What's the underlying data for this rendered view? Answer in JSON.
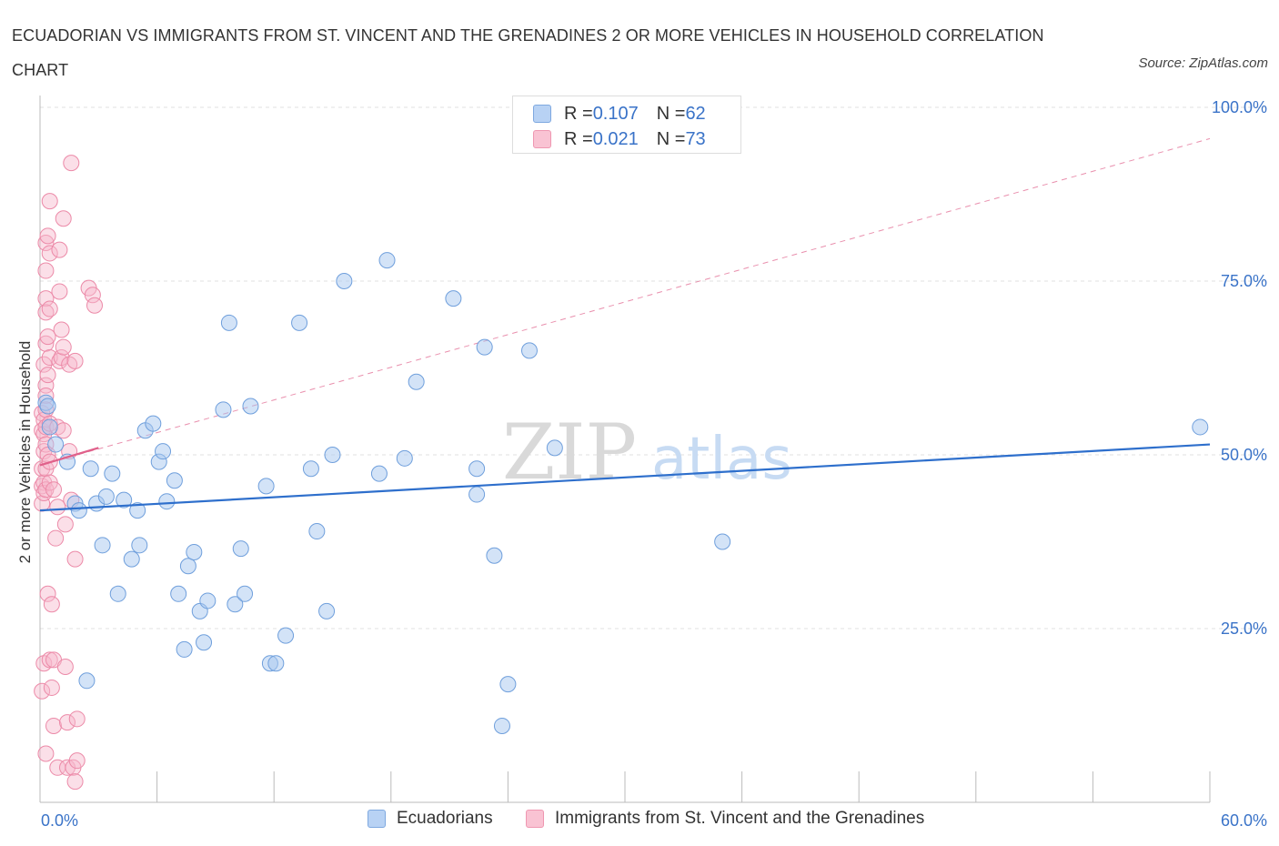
{
  "title": "ECUADORIAN VS IMMIGRANTS FROM ST. VINCENT AND THE GRENADINES 2 OR MORE VEHICLES IN HOUSEHOLD CORRELATION CHART",
  "source": "Source: ZipAtlas.com",
  "watermark": {
    "zip": "ZIP",
    "atlas": "atlas"
  },
  "legend": {
    "series1": {
      "r_label": "R = ",
      "r_value": "0.107",
      "n_label": "N = ",
      "n_value": "62"
    },
    "series2": {
      "r_label": "R = ",
      "r_value": "0.021",
      "n_label": "N = ",
      "n_value": "73"
    }
  },
  "bottom_legend": {
    "series1": "Ecuadorians",
    "series2": "Immigrants from St. Vincent and the Grenadines"
  },
  "chart_data": {
    "type": "scatter",
    "title": "ECUADORIAN VS IMMIGRANTS FROM ST. VINCENT AND THE GRENADINES 2 OR MORE VEHICLES IN HOUSEHOLD CORRELATION CHART",
    "xlabel": "",
    "ylabel": "2 or more Vehicles in Household",
    "xlim": [
      0,
      60
    ],
    "ylim": [
      0,
      100
    ],
    "x_tick_labels": [
      "0.0%",
      "60.0%"
    ],
    "y_ticks": [
      25,
      50,
      75,
      100
    ],
    "y_tick_labels": [
      "25.0%",
      "50.0%",
      "75.0%",
      "100.0%"
    ],
    "colors": {
      "series1_fill": "#a8c8f0",
      "series1_stroke": "#6f9fdc",
      "series1_line": "#2e6fcc",
      "series2_fill": "#f7b8cb",
      "series2_stroke": "#ec8aa8",
      "series2_line": "#e0608a",
      "grid": "#e0e0e0",
      "axis_text": "#3a73c8"
    },
    "series": [
      {
        "name": "Ecuadorians",
        "points": [
          [
            0.3,
            57.5
          ],
          [
            0.4,
            57.0
          ],
          [
            0.5,
            54.0
          ],
          [
            0.8,
            51.5
          ],
          [
            1.4,
            49.0
          ],
          [
            1.8,
            43.0
          ],
          [
            2.0,
            42.0
          ],
          [
            2.4,
            17.5
          ],
          [
            2.6,
            48.0
          ],
          [
            2.9,
            43.0
          ],
          [
            3.2,
            37.0
          ],
          [
            3.4,
            44.0
          ],
          [
            3.7,
            47.3
          ],
          [
            4.0,
            30.0
          ],
          [
            4.3,
            43.5
          ],
          [
            4.7,
            35.0
          ],
          [
            5.0,
            42.0
          ],
          [
            5.1,
            37.0
          ],
          [
            5.4,
            53.5
          ],
          [
            5.8,
            54.5
          ],
          [
            6.1,
            49.0
          ],
          [
            6.3,
            50.5
          ],
          [
            6.5,
            43.3
          ],
          [
            6.9,
            46.3
          ],
          [
            7.1,
            30.0
          ],
          [
            7.4,
            22.0
          ],
          [
            7.6,
            34.0
          ],
          [
            7.9,
            36.0
          ],
          [
            8.2,
            27.5
          ],
          [
            8.4,
            23.0
          ],
          [
            8.6,
            29.0
          ],
          [
            9.4,
            56.5
          ],
          [
            9.7,
            69.0
          ],
          [
            10.0,
            28.5
          ],
          [
            10.3,
            36.5
          ],
          [
            10.5,
            30.0
          ],
          [
            10.8,
            57.0
          ],
          [
            11.6,
            45.5
          ],
          [
            11.8,
            20.0
          ],
          [
            12.1,
            20.0
          ],
          [
            12.6,
            24.0
          ],
          [
            13.3,
            69.0
          ],
          [
            13.9,
            48.0
          ],
          [
            14.2,
            39.0
          ],
          [
            14.7,
            27.5
          ],
          [
            15.0,
            50.0
          ],
          [
            15.6,
            75.0
          ],
          [
            17.4,
            47.3
          ],
          [
            17.8,
            78.0
          ],
          [
            18.7,
            49.5
          ],
          [
            19.3,
            60.5
          ],
          [
            21.2,
            72.5
          ],
          [
            22.4,
            48.0
          ],
          [
            22.4,
            44.3
          ],
          [
            22.8,
            65.5
          ],
          [
            23.3,
            35.5
          ],
          [
            23.7,
            11.0
          ],
          [
            24.0,
            17.0
          ],
          [
            25.1,
            65.0
          ],
          [
            26.4,
            51.0
          ],
          [
            35.0,
            37.5
          ],
          [
            59.5,
            54.0
          ]
        ],
        "trend": {
          "x": [
            0,
            60
          ],
          "y": [
            42.0,
            51.5
          ]
        }
      },
      {
        "name": "Immigrants from St. Vincent and the Grenadines",
        "points": [
          [
            0.1,
            56.0
          ],
          [
            0.1,
            53.5
          ],
          [
            0.1,
            48.0
          ],
          [
            0.1,
            45.5
          ],
          [
            0.1,
            43.0
          ],
          [
            0.1,
            16.0
          ],
          [
            0.2,
            63.0
          ],
          [
            0.2,
            55.0
          ],
          [
            0.2,
            53.0
          ],
          [
            0.2,
            50.5
          ],
          [
            0.2,
            46.0
          ],
          [
            0.2,
            44.5
          ],
          [
            0.2,
            20.0
          ],
          [
            0.3,
            80.5
          ],
          [
            0.3,
            76.5
          ],
          [
            0.3,
            72.5
          ],
          [
            0.3,
            70.5
          ],
          [
            0.3,
            66.0
          ],
          [
            0.3,
            60.0
          ],
          [
            0.3,
            58.5
          ],
          [
            0.3,
            56.5
          ],
          [
            0.3,
            54.0
          ],
          [
            0.3,
            51.5
          ],
          [
            0.3,
            48.0
          ],
          [
            0.3,
            45.0
          ],
          [
            0.3,
            7.0
          ],
          [
            0.4,
            81.5
          ],
          [
            0.4,
            67.0
          ],
          [
            0.4,
            61.5
          ],
          [
            0.4,
            50.0
          ],
          [
            0.4,
            30.0
          ],
          [
            0.5,
            86.5
          ],
          [
            0.5,
            79.0
          ],
          [
            0.5,
            71.0
          ],
          [
            0.5,
            64.0
          ],
          [
            0.5,
            54.5
          ],
          [
            0.5,
            49.0
          ],
          [
            0.5,
            46.0
          ],
          [
            0.5,
            20.5
          ],
          [
            0.6,
            28.5
          ],
          [
            0.6,
            16.5
          ],
          [
            0.7,
            11.0
          ],
          [
            0.7,
            20.5
          ],
          [
            0.7,
            45.0
          ],
          [
            0.8,
            38.0
          ],
          [
            0.9,
            54.0
          ],
          [
            0.9,
            42.5
          ],
          [
            0.9,
            5.0
          ],
          [
            1.0,
            79.5
          ],
          [
            1.0,
            73.5
          ],
          [
            1.0,
            63.5
          ],
          [
            1.1,
            68.0
          ],
          [
            1.1,
            64.0
          ],
          [
            1.2,
            84.0
          ],
          [
            1.2,
            65.5
          ],
          [
            1.2,
            53.5
          ],
          [
            1.3,
            40.0
          ],
          [
            1.3,
            19.5
          ],
          [
            1.4,
            11.5
          ],
          [
            1.4,
            5.0
          ],
          [
            1.5,
            63.0
          ],
          [
            1.5,
            50.5
          ],
          [
            1.6,
            92.0
          ],
          [
            1.6,
            43.5
          ],
          [
            1.7,
            5.0
          ],
          [
            1.8,
            63.5
          ],
          [
            1.8,
            35.0
          ],
          [
            1.8,
            3.0
          ],
          [
            1.9,
            6.0
          ],
          [
            1.9,
            12.0
          ],
          [
            2.5,
            74.0
          ],
          [
            2.7,
            73.0
          ],
          [
            2.8,
            71.5
          ]
        ],
        "trend": {
          "x": [
            0,
            3.0
          ],
          "y": [
            48.5,
            51.0
          ]
        },
        "trend_extended": {
          "x": [
            0,
            60
          ],
          "y": [
            48.5,
            95.5
          ]
        }
      }
    ]
  }
}
